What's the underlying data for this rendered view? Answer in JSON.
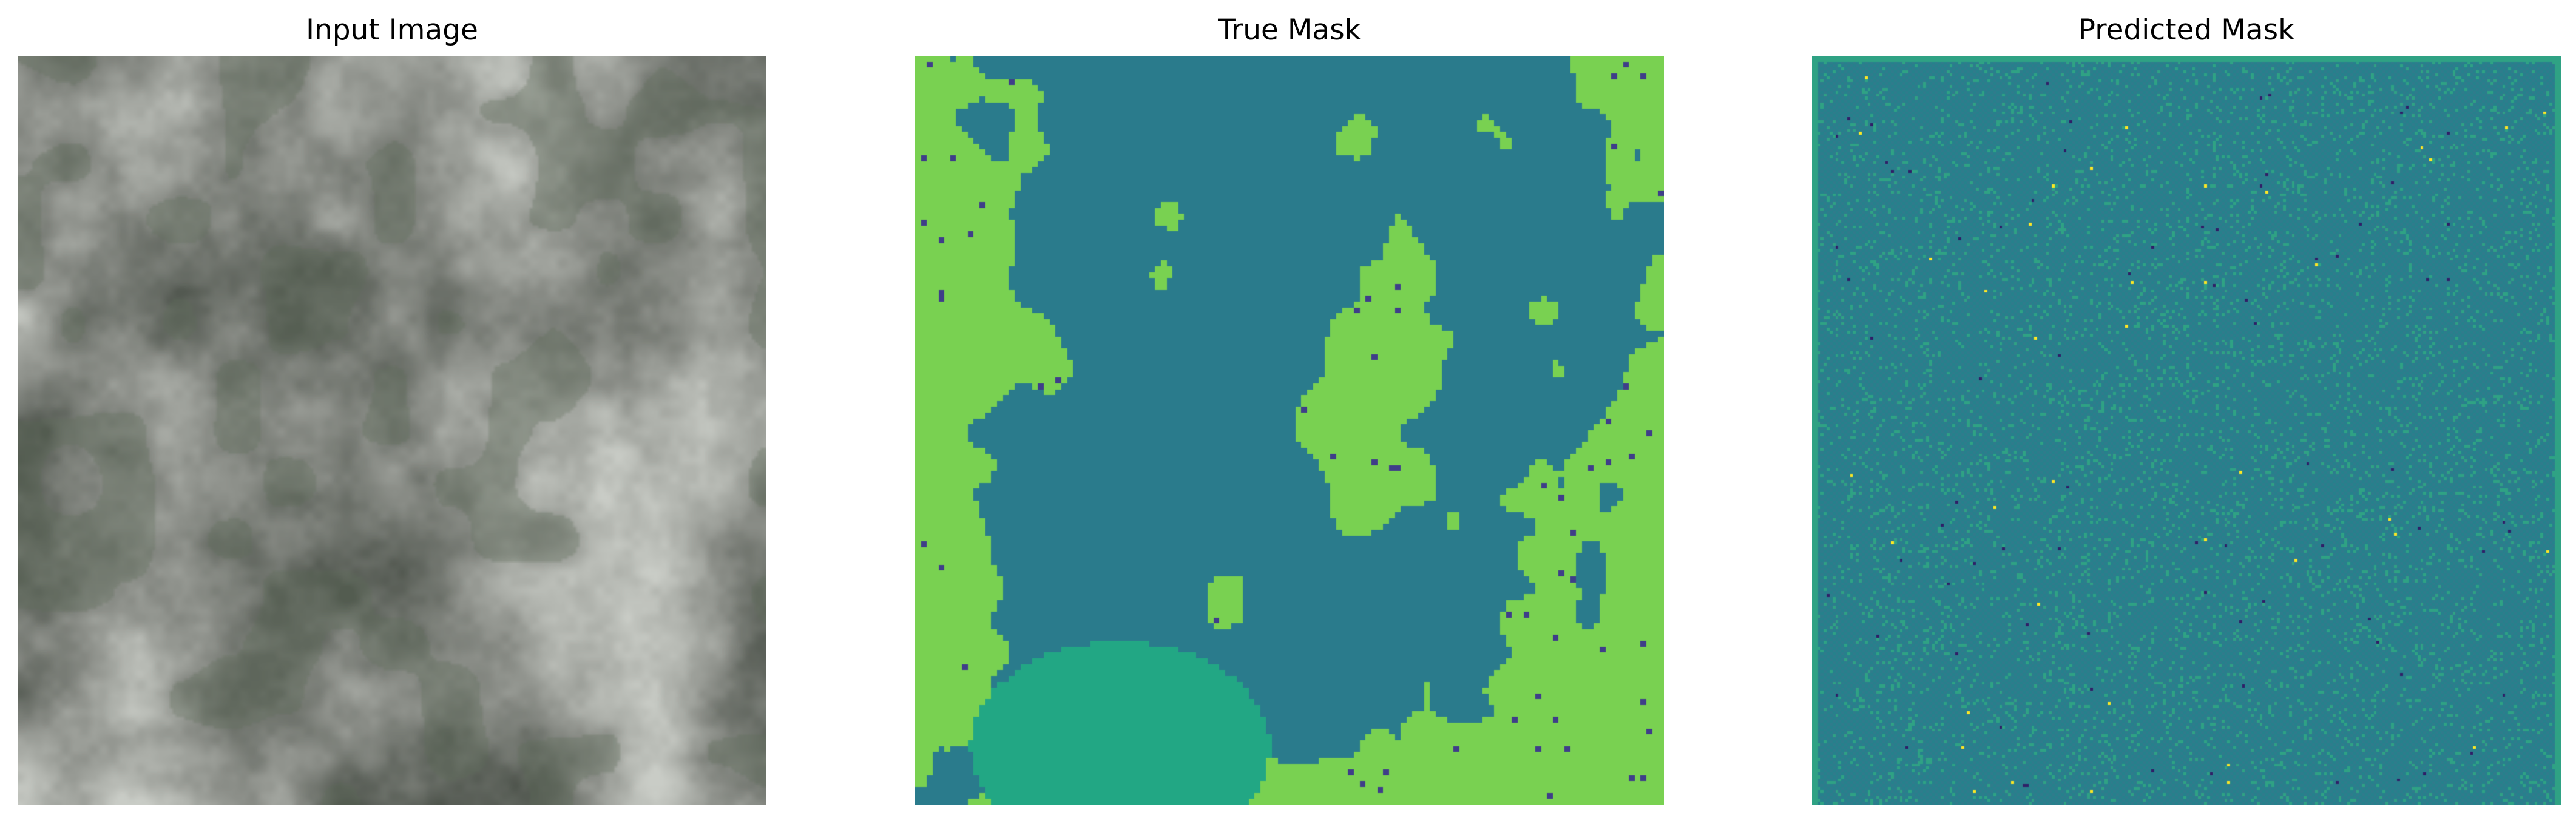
{
  "figure": {
    "panels": [
      {
        "title": "Input Image",
        "content": "satellite-grayscale-terrain"
      },
      {
        "title": "True Mask",
        "content": "segmentation-mask"
      },
      {
        "title": "Predicted Mask",
        "content": "segmentation-mask-noisy"
      }
    ]
  },
  "palette": {
    "background_class": "#2a7b8c",
    "vegetation_class": "#79d151",
    "mid_class": "#22a784",
    "dark_class": "#3f3e89",
    "bright_class": "#fde725",
    "pred_base": "#2f7c8c",
    "pred_alt": "#26818c",
    "pred_light": "#2fa284",
    "pred_dark": "#2f1f67",
    "terrain_base": "#8b8e88",
    "terrain_light": "#c9ccc6",
    "terrain_dark": "#4f554d",
    "terrain_green": "#5d6c58"
  }
}
